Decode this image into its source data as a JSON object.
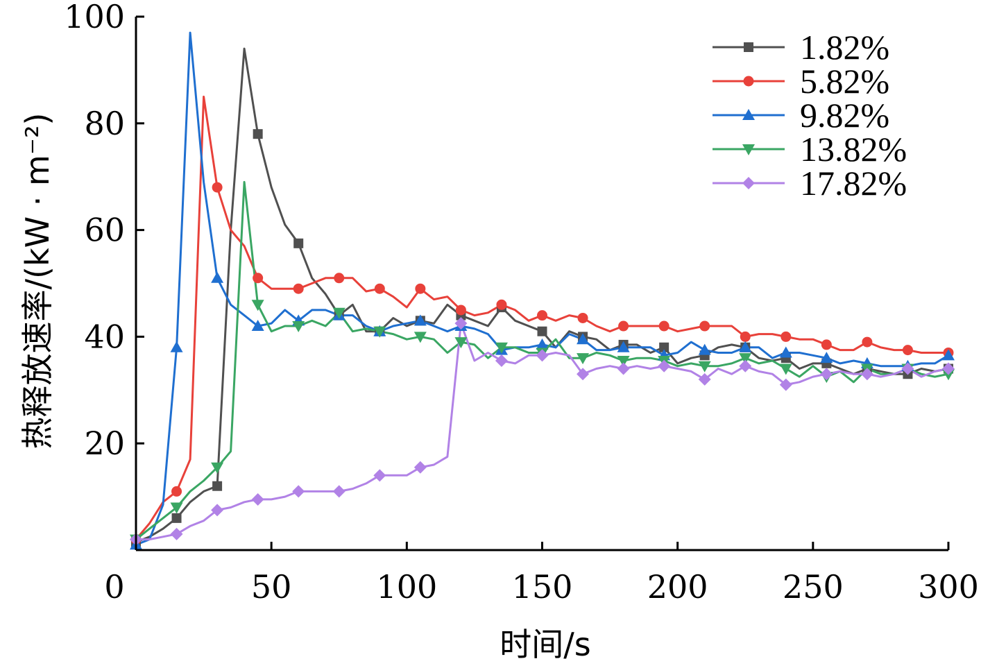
{
  "chart_data": {
    "type": "line",
    "title": "",
    "xlabel": "时间/s",
    "ylabel": "热释放速率/(kW · m⁻²)",
    "xlim": [
      0,
      300
    ],
    "ylim": [
      0,
      100
    ],
    "xticks": [
      0,
      50,
      100,
      150,
      200,
      250,
      300
    ],
    "yticks": [
      20,
      40,
      60,
      80,
      100
    ],
    "grid": false,
    "legend": "top-right",
    "series": [
      {
        "name": "1.82%",
        "color": "#505050",
        "marker": "square",
        "x": [
          0,
          5,
          10,
          15,
          20,
          25,
          30,
          35,
          40,
          45,
          50,
          55,
          60,
          65,
          70,
          75,
          80,
          85,
          90,
          95,
          100,
          105,
          110,
          115,
          120,
          125,
          130,
          135,
          140,
          145,
          150,
          155,
          160,
          165,
          170,
          175,
          180,
          185,
          190,
          195,
          200,
          205,
          210,
          215,
          220,
          225,
          230,
          235,
          240,
          245,
          250,
          255,
          260,
          265,
          270,
          275,
          280,
          285,
          290,
          295,
          300
        ],
        "y": [
          1.5,
          2.5,
          4,
          6,
          9,
          11,
          12,
          60,
          94,
          78,
          68,
          61,
          57.5,
          51,
          48,
          44,
          46,
          41,
          41,
          43.5,
          42,
          43,
          42.5,
          46,
          44,
          43,
          42,
          45.5,
          43,
          42,
          41,
          38,
          41,
          40,
          39.5,
          37.5,
          38.5,
          38.5,
          37,
          38,
          35,
          36,
          36.5,
          38,
          38.5,
          38,
          36,
          35.5,
          36,
          34,
          35,
          35,
          34,
          33,
          34,
          33.5,
          33,
          33,
          34,
          33.5,
          34
        ]
      },
      {
        "name": "5.82%",
        "color": "#e8413a",
        "marker": "circle",
        "x": [
          0,
          5,
          10,
          15,
          20,
          25,
          30,
          35,
          40,
          45,
          50,
          55,
          60,
          65,
          70,
          75,
          80,
          85,
          90,
          95,
          100,
          105,
          110,
          115,
          120,
          125,
          130,
          135,
          140,
          145,
          150,
          155,
          160,
          165,
          170,
          175,
          180,
          185,
          190,
          195,
          200,
          205,
          210,
          215,
          220,
          225,
          230,
          235,
          240,
          245,
          250,
          255,
          260,
          265,
          270,
          275,
          280,
          285,
          290,
          295,
          300
        ],
        "y": [
          2,
          5,
          9,
          11,
          17,
          85,
          68,
          60,
          57,
          51,
          49,
          49,
          49,
          50,
          51,
          51,
          51,
          48.5,
          49,
          47.5,
          45.5,
          49,
          47,
          47.5,
          45,
          44,
          44.5,
          46,
          45,
          43,
          44,
          43,
          44,
          43.5,
          42,
          41,
          42,
          42,
          42,
          42,
          41,
          41.5,
          42,
          42,
          42,
          40,
          40.5,
          40.5,
          40,
          39.5,
          39.5,
          38.5,
          37.5,
          37.5,
          39,
          38,
          37.5,
          37.5,
          37,
          37,
          37
        ]
      },
      {
        "name": "9.82%",
        "color": "#1f6fd0",
        "marker": "triangle-up",
        "x": [
          0,
          5,
          10,
          15,
          20,
          25,
          30,
          35,
          40,
          45,
          50,
          55,
          60,
          65,
          70,
          75,
          80,
          85,
          90,
          95,
          100,
          105,
          110,
          115,
          120,
          125,
          130,
          135,
          140,
          145,
          150,
          155,
          160,
          165,
          170,
          175,
          180,
          185,
          190,
          195,
          200,
          205,
          210,
          215,
          220,
          225,
          230,
          235,
          240,
          245,
          250,
          255,
          260,
          265,
          270,
          275,
          280,
          285,
          290,
          295,
          300
        ],
        "y": [
          1,
          2,
          8.5,
          38,
          97,
          69,
          51,
          46,
          44,
          42,
          42.5,
          45,
          43,
          45,
          45,
          44,
          44,
          42,
          41,
          42,
          42.5,
          43,
          42,
          41,
          42,
          41.5,
          40.5,
          37.5,
          38,
          38,
          38.5,
          38,
          40.5,
          39.5,
          37.5,
          37.5,
          38,
          38,
          38,
          36.5,
          37,
          39,
          37.5,
          37,
          37,
          38,
          38,
          36,
          37,
          37,
          36.5,
          36,
          35,
          35.5,
          35,
          34.5,
          34.5,
          34.5,
          35,
          35,
          36.5
        ]
      },
      {
        "name": "13.82%",
        "color": "#3aa663",
        "marker": "triangle-down",
        "x": [
          0,
          5,
          10,
          15,
          20,
          25,
          30,
          35,
          40,
          45,
          50,
          55,
          60,
          65,
          70,
          75,
          80,
          85,
          90,
          95,
          100,
          105,
          110,
          115,
          120,
          125,
          130,
          135,
          140,
          145,
          150,
          155,
          160,
          165,
          170,
          175,
          180,
          185,
          190,
          195,
          200,
          205,
          210,
          215,
          220,
          225,
          230,
          235,
          240,
          245,
          250,
          255,
          260,
          265,
          270,
          275,
          280,
          285,
          290,
          295,
          300
        ],
        "y": [
          2,
          4,
          6,
          8,
          11,
          13,
          15.5,
          18.5,
          69,
          46,
          41,
          42,
          42,
          43,
          42,
          44.5,
          41,
          41.5,
          41,
          40.5,
          39.5,
          40,
          39.5,
          37,
          39,
          38.5,
          36,
          38,
          38,
          37,
          37,
          39.5,
          36,
          36,
          37,
          36.5,
          35.5,
          36,
          36,
          35.5,
          34.5,
          35,
          34.5,
          34.5,
          35,
          36,
          35,
          35.5,
          34,
          32.5,
          34.5,
          32.5,
          33.5,
          31.5,
          34,
          33,
          33,
          34,
          33,
          32.5,
          33
        ]
      },
      {
        "name": "17.82%",
        "color": "#b182e6",
        "marker": "diamond",
        "x": [
          0,
          5,
          10,
          15,
          20,
          25,
          30,
          35,
          40,
          45,
          50,
          55,
          60,
          65,
          70,
          75,
          80,
          85,
          90,
          95,
          100,
          105,
          110,
          115,
          120,
          125,
          130,
          135,
          140,
          145,
          150,
          155,
          160,
          165,
          170,
          175,
          180,
          185,
          190,
          195,
          200,
          205,
          210,
          215,
          220,
          225,
          230,
          235,
          240,
          245,
          250,
          255,
          260,
          265,
          270,
          275,
          280,
          285,
          290,
          295,
          300
        ],
        "y": [
          2,
          2,
          2.5,
          3,
          4.5,
          5.5,
          7.5,
          8,
          9,
          9.5,
          9.5,
          10,
          11,
          11,
          11,
          11,
          11.5,
          12.5,
          14,
          14,
          14,
          15.5,
          16,
          17.5,
          42.5,
          35.5,
          37,
          35.5,
          35,
          36.5,
          36.5,
          37,
          36.5,
          33,
          34,
          34.5,
          34,
          34.5,
          34,
          34.5,
          34,
          33.5,
          32,
          34,
          33,
          34.5,
          33.5,
          33,
          31,
          31.5,
          32.5,
          33,
          33.5,
          33,
          33,
          32.5,
          33,
          34,
          32.5,
          33.5,
          34
        ]
      }
    ]
  }
}
